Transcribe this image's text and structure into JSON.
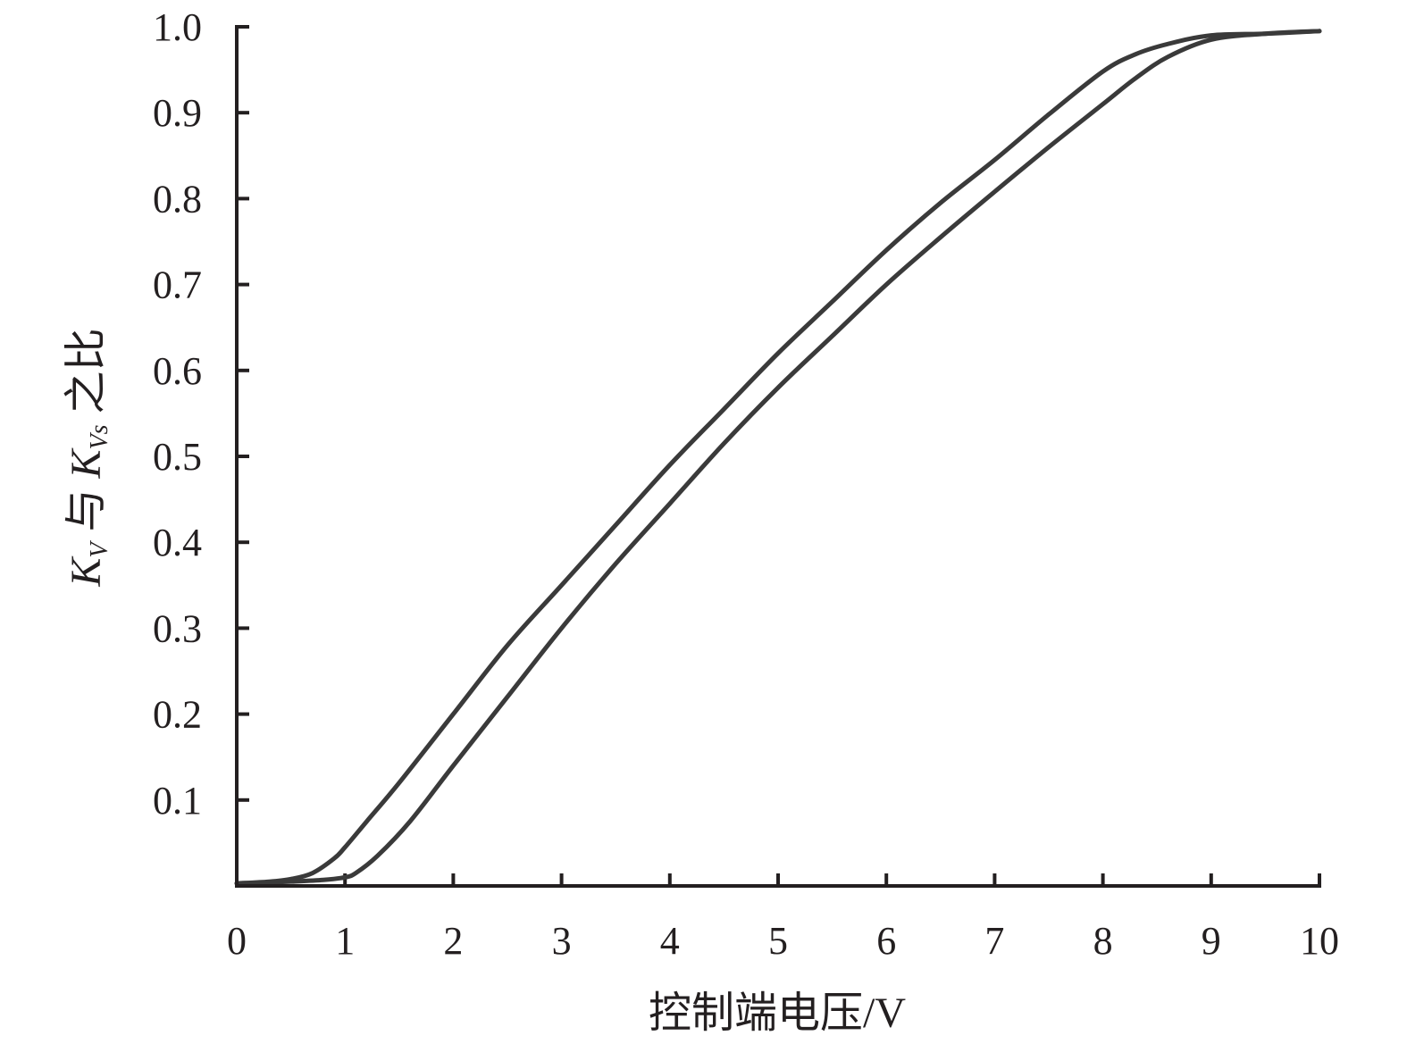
{
  "chart_data": {
    "type": "line",
    "title": "",
    "xlabel": "控制端电压/V",
    "ylabel": "KV 与 KVs 之比",
    "ylabel_parts": {
      "k1": "K",
      "sub1": "V",
      "middle": " 与 ",
      "k2": "K",
      "sub2": "Vs",
      "end": " 之比"
    },
    "xlim": [
      0,
      10
    ],
    "ylim": [
      0,
      1.0
    ],
    "x_ticks": [
      0,
      1,
      2,
      3,
      4,
      5,
      6,
      7,
      8,
      9,
      10
    ],
    "x_tick_labels": [
      "0",
      "1",
      "2",
      "3",
      "4",
      "5",
      "6",
      "7",
      "8",
      "9",
      "10"
    ],
    "y_ticks": [
      0.1,
      0.2,
      0.3,
      0.4,
      0.5,
      0.6,
      0.7,
      0.8,
      0.9,
      1.0
    ],
    "y_tick_labels": [
      "0.1",
      "0.2",
      "0.3",
      "0.4",
      "0.5",
      "0.6",
      "0.7",
      "0.8",
      "0.9",
      "1.0"
    ],
    "grid": false,
    "legend": "none",
    "line_color": "#3a3a3a",
    "series": [
      {
        "x": [
          0,
          0.3,
          0.5,
          0.7,
          0.9,
          1.0,
          1.2,
          1.5,
          2.0,
          2.5,
          3.0,
          3.5,
          4.0,
          4.5,
          5.0,
          5.5,
          6.0,
          6.5,
          7.0,
          7.5,
          8.0,
          8.3,
          8.6,
          9.0,
          9.5,
          10.0
        ],
        "y": [
          0.003,
          0.005,
          0.008,
          0.015,
          0.032,
          0.045,
          0.075,
          0.12,
          0.2,
          0.28,
          0.35,
          0.42,
          0.49,
          0.555,
          0.62,
          0.68,
          0.74,
          0.795,
          0.845,
          0.898,
          0.948,
          0.968,
          0.98,
          0.99,
          0.992,
          0.995
        ]
      },
      {
        "x": [
          0,
          0.3,
          0.5,
          0.8,
          1.0,
          1.1,
          1.3,
          1.6,
          2.0,
          2.5,
          3.0,
          3.5,
          4.0,
          4.5,
          5.0,
          5.5,
          6.0,
          6.5,
          7.0,
          7.5,
          8.0,
          8.3,
          8.6,
          9.0,
          9.5,
          10.0
        ],
        "y": [
          0.003,
          0.004,
          0.005,
          0.007,
          0.01,
          0.015,
          0.035,
          0.075,
          0.14,
          0.22,
          0.3,
          0.375,
          0.445,
          0.515,
          0.58,
          0.64,
          0.7,
          0.755,
          0.808,
          0.86,
          0.91,
          0.94,
          0.965,
          0.985,
          0.992,
          0.995
        ]
      }
    ]
  }
}
